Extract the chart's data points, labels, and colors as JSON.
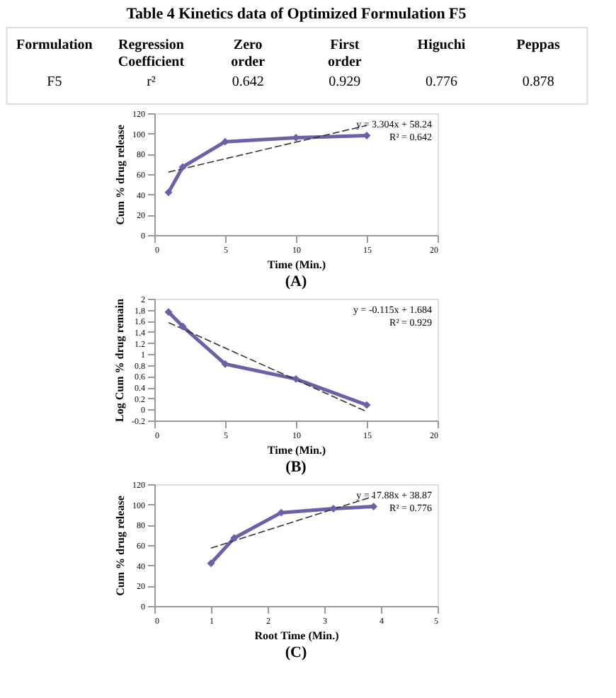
{
  "chart_data": [
    {
      "type": "other",
      "title": "Table 4 Kinetics data of Optimized Formulation F5",
      "annotations": [
        "Formulation",
        "Regression Coefficient",
        "Zero order",
        "First order",
        "Higuchi",
        "Peppas",
        "F5",
        "r²",
        "0.642",
        "0.929",
        "0.776",
        "0.878"
      ]
    },
    {
      "type": "line",
      "title": "(A)",
      "xlabel": "Time (Min.)",
      "ylabel": "Cum % drug release",
      "xlim": [
        0,
        20
      ],
      "xticks": [
        0,
        5,
        10,
        15,
        20
      ],
      "ylim": [
        0,
        120
      ],
      "yticks": [
        0,
        20,
        40,
        60,
        80,
        100,
        120
      ],
      "grid": false,
      "annotations": [
        "y = 3.304x + 58.24",
        "R² = 0.642"
      ],
      "series": [
        {
          "color": "#6f5fa8",
          "marker": "diamond",
          "line_style": "solid",
          "x": [
            1,
            2,
            5,
            10,
            15
          ],
          "values": [
            42,
            67,
            92,
            96,
            98
          ]
        },
        {
          "type": "line",
          "color": "#333333",
          "marker": "none",
          "line_style": "dashed",
          "x": [
            1,
            15
          ],
          "values": [
            62,
            108
          ]
        }
      ]
    },
    {
      "type": "line",
      "title": "(B)",
      "xlabel": "Time (Min.)",
      "ylabel": "Log Cum % drug remain",
      "xlim": [
        0,
        20
      ],
      "xticks": [
        0,
        5,
        10,
        15,
        20
      ],
      "ylim": [
        -0.2,
        2
      ],
      "yticks": [
        -0.2,
        0,
        0.2,
        0.4,
        0.6,
        0.8,
        1,
        1.2,
        1.4,
        1.6,
        1.8,
        2
      ],
      "grid": false,
      "annotations": [
        "y = -0.115x + 1.684",
        "R² = 0.929"
      ],
      "series": [
        {
          "color": "#6f5fa8",
          "marker": "diamond",
          "line_style": "solid",
          "x": [
            1,
            2,
            5,
            10,
            15
          ],
          "values": [
            1.76,
            1.5,
            0.82,
            0.55,
            0.08
          ]
        },
        {
          "type": "line",
          "color": "#333333",
          "marker": "none",
          "line_style": "dashed",
          "x": [
            1,
            15
          ],
          "values": [
            1.57,
            -0.04
          ]
        }
      ]
    },
    {
      "type": "line",
      "title": "(C)",
      "xlabel": "Root Time (Min.)",
      "ylabel": "Cum % drug release",
      "xlim": [
        0,
        5
      ],
      "xticks": [
        0,
        1,
        2,
        3,
        4,
        5
      ],
      "ylim": [
        0,
        120
      ],
      "yticks": [
        0,
        20,
        40,
        60,
        80,
        100,
        120
      ],
      "grid": false,
      "annotations": [
        "y = 17.88x + 38.87",
        "R² = 0.776"
      ],
      "series": [
        {
          "color": "#6f5fa8",
          "marker": "diamond",
          "line_style": "solid",
          "x": [
            1,
            1.41,
            2.24,
            3.16,
            3.87
          ],
          "values": [
            42,
            67,
            92,
            96,
            98
          ]
        },
        {
          "type": "line",
          "color": "#333333",
          "marker": "none",
          "line_style": "dashed",
          "x": [
            1,
            3.87
          ],
          "values": [
            57,
            108
          ]
        }
      ]
    }
  ]
}
